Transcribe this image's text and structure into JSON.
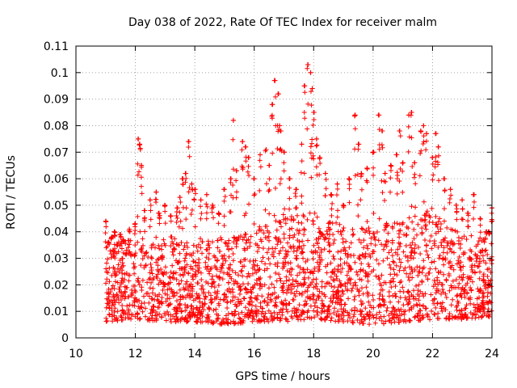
{
  "chart_data": {
    "type": "scatter",
    "title": "Day 038 of 2022, Rate Of TEC Index for receiver malm",
    "xlabel": "GPS time / hours",
    "ylabel": "ROTI / TECUs",
    "xlim": [
      10,
      24
    ],
    "ylim": [
      0,
      0.11
    ],
    "x_ticks": [
      "10",
      "12",
      "14",
      "16",
      "18",
      "20",
      "22",
      "24"
    ],
    "y_ticks": [
      "0",
      "0.01",
      "0.02",
      "0.03",
      "0.04",
      "0.05",
      "0.06",
      "0.07",
      "0.08",
      "0.09",
      "0.1",
      "0.11"
    ],
    "x_tick_values": [
      10,
      12,
      14,
      16,
      18,
      20,
      22,
      24
    ],
    "y_tick_values": [
      0,
      0.01,
      0.02,
      0.03,
      0.04,
      0.05,
      0.06,
      0.07,
      0.08,
      0.09,
      0.1,
      0.11
    ],
    "grid": true,
    "marker": "+",
    "colors": {
      "series": "#ff0000",
      "grid": "#a0a0a0",
      "axis": "#000000"
    },
    "series": [
      {
        "x": [
          11.0,
          11.1,
          11.2,
          11.3,
          11.4,
          11.5,
          11.6,
          11.8,
          12.0,
          12.1,
          12.15,
          12.2,
          12.3,
          12.5,
          12.7,
          12.8,
          13.0,
          13.2,
          13.4,
          13.5,
          13.6,
          13.7,
          13.8,
          13.9,
          14.0,
          14.2,
          14.4,
          14.6,
          14.8,
          15.0,
          15.2,
          15.3,
          15.4,
          15.6,
          15.7,
          15.8,
          16.0,
          16.2,
          16.4,
          16.5,
          16.6,
          16.7,
          16.8,
          16.85,
          16.9,
          17.0,
          17.2,
          17.4,
          17.6,
          17.7,
          17.8,
          17.9,
          17.95,
          18.0,
          18.1,
          18.2,
          18.4,
          18.6,
          18.8,
          19.0,
          19.2,
          19.4,
          19.5,
          19.6,
          19.8,
          20.0,
          20.2,
          20.3,
          20.4,
          20.6,
          20.8,
          20.9,
          21.0,
          21.2,
          21.3,
          21.4,
          21.6,
          21.7,
          21.8,
          22.0,
          22.1,
          22.2,
          22.4,
          22.6,
          22.8,
          23.0,
          23.2,
          23.4,
          23.6,
          23.8,
          23.9,
          24.0
        ],
        "y": [
          0.044,
          0.036,
          0.038,
          0.04,
          0.035,
          0.039,
          0.037,
          0.041,
          0.043,
          0.075,
          0.073,
          0.065,
          0.048,
          0.052,
          0.055,
          0.047,
          0.05,
          0.046,
          0.049,
          0.053,
          0.06,
          0.062,
          0.074,
          0.058,
          0.056,
          0.052,
          0.054,
          0.05,
          0.047,
          0.056,
          0.06,
          0.082,
          0.063,
          0.074,
          0.072,
          0.068,
          0.06,
          0.069,
          0.071,
          0.065,
          0.088,
          0.097,
          0.092,
          0.08,
          0.078,
          0.07,
          0.06,
          0.056,
          0.073,
          0.095,
          0.103,
          0.1,
          0.094,
          0.085,
          0.075,
          0.068,
          0.062,
          0.054,
          0.058,
          0.05,
          0.06,
          0.084,
          0.073,
          0.062,
          0.064,
          0.07,
          0.084,
          0.078,
          0.062,
          0.065,
          0.069,
          0.078,
          0.066,
          0.084,
          0.085,
          0.066,
          0.078,
          0.08,
          0.077,
          0.068,
          0.077,
          0.072,
          0.06,
          0.056,
          0.05,
          0.052,
          0.047,
          0.054,
          0.045,
          0.04,
          0.04,
          0.049
        ],
        "band_x": [
          11,
          12,
          13,
          14,
          15,
          16,
          17,
          18,
          19,
          20,
          21,
          22,
          23,
          24
        ],
        "band_low": [
          0.006,
          0.007,
          0.006,
          0.006,
          0.005,
          0.006,
          0.006,
          0.007,
          0.006,
          0.005,
          0.006,
          0.007,
          0.007,
          0.008
        ],
        "band_high": [
          0.035,
          0.038,
          0.038,
          0.036,
          0.038,
          0.042,
          0.045,
          0.048,
          0.042,
          0.042,
          0.046,
          0.047,
          0.04,
          0.036
        ]
      }
    ]
  }
}
